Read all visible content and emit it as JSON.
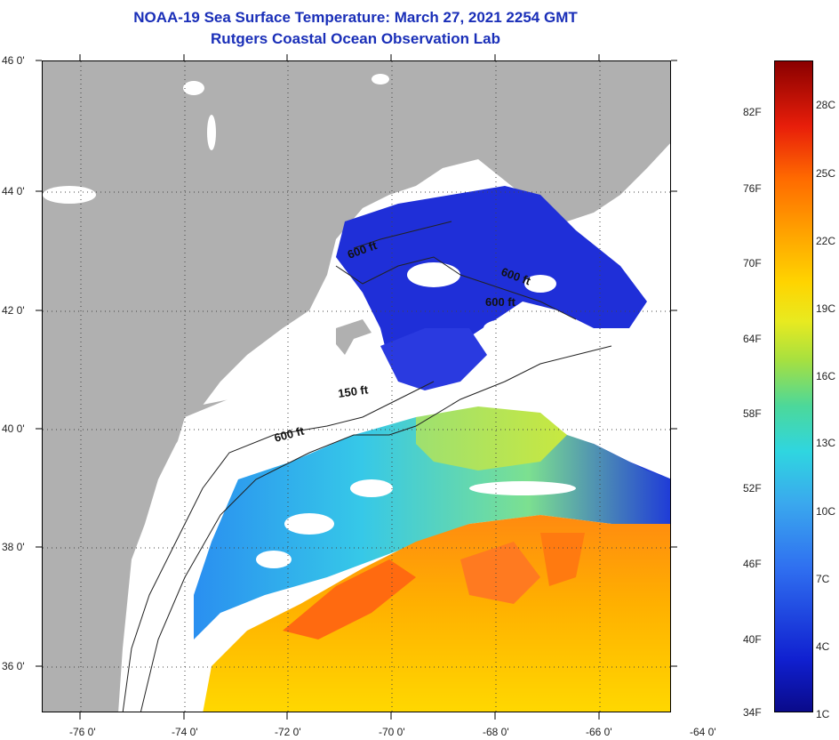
{
  "header": {
    "title": "NOAA-19 Sea Surface Temperature:  March 27, 2021 2254 GMT",
    "subtitle": "Rutgers Coastal Ocean Observation Lab"
  },
  "map": {
    "lat_labels": [
      "46 0'",
      "44 0'",
      "42 0'",
      "40 0'",
      "38 0'",
      "36 0'"
    ],
    "lon_labels": [
      "-76 0'",
      "-74 0'",
      "-72 0'",
      "-70 0'",
      "-68 0'",
      "-66 0'",
      "-64 0'"
    ],
    "contour_labels": {
      "gulf_north": "600 ft",
      "gulf_east": "600 ft",
      "georges": "600 ft",
      "shelf_150": "150 ft",
      "shelf_600": "600 ft"
    },
    "colors": {
      "land": "#b0b0b0",
      "cloud": "#ffffff",
      "cold": "#1f2fd8",
      "warm": "#ff7a10"
    }
  },
  "colorbar": {
    "fahrenheit_labels": [
      "82F",
      "76F",
      "70F",
      "64F",
      "58F",
      "52F",
      "46F",
      "40F",
      "34F"
    ],
    "celsius_labels": [
      "28C",
      "25C",
      "22C",
      "19C",
      "16C",
      "13C",
      "10C",
      "7C",
      "4C",
      "1C"
    ]
  }
}
